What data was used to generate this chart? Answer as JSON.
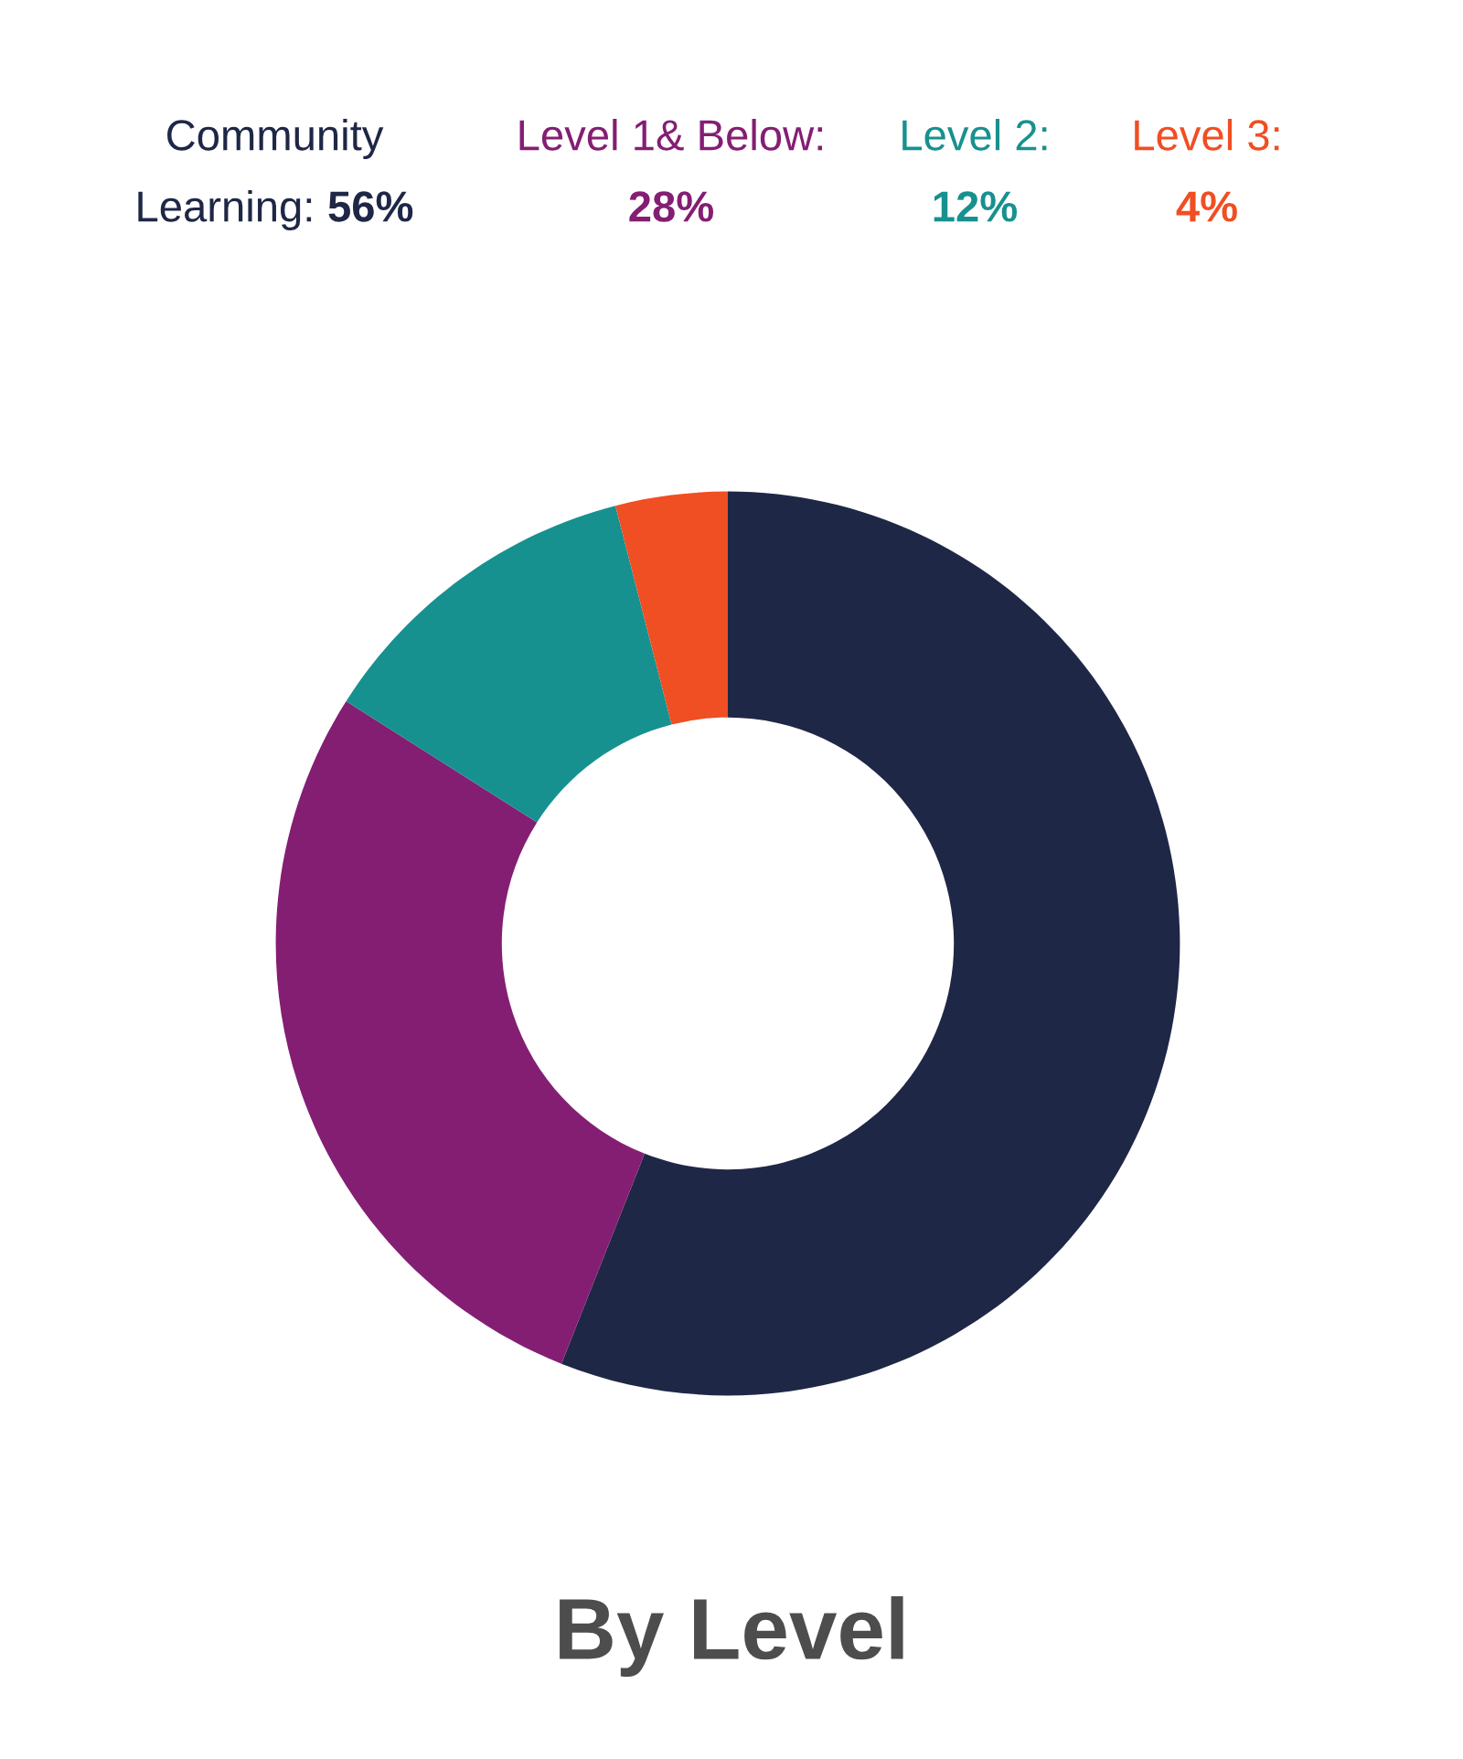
{
  "chart_data": {
    "type": "donut",
    "title": "By Level",
    "categories": [
      null,
      null,
      null,
      null
    ],
    "values": [
      56,
      28,
      12,
      4
    ],
    "colors": [
      "#1f2747",
      "#841e73",
      "#17918f",
      "#f04e23"
    ],
    "annotations": [
      "Community\nLearning: 56%",
      "Level 1& Below:\n28%",
      "Level 2:\n12%",
      "Level 3:\n4%"
    ]
  }
}
